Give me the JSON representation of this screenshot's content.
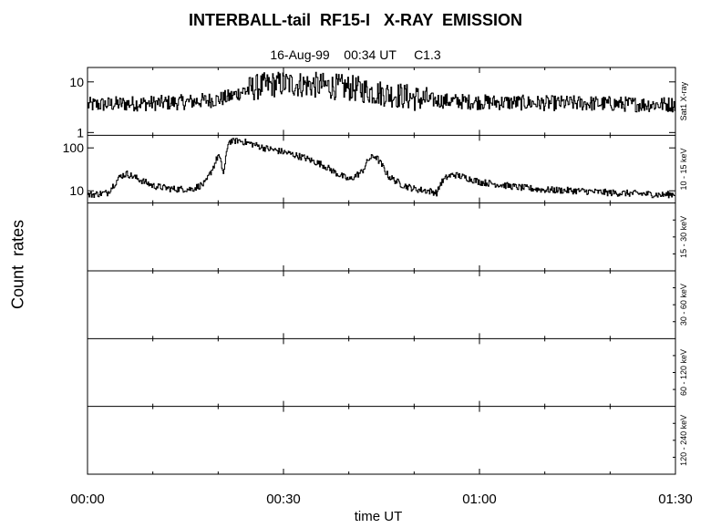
{
  "chart_data": {
    "type": "line",
    "title": "INTERBALL-tail  RF15-I   X-RAY  EMISSION",
    "subtitle": "16-Aug-99    00:34 UT     C1.3",
    "ylabel": "Count  rates",
    "xlabel": "time UT",
    "x_ticks": [
      "00:00",
      "00:30",
      "01:00",
      "01:30"
    ],
    "x_range_minutes": [
      0,
      90
    ],
    "panels": [
      {
        "label": "Sat1 X-ray",
        "scale": "log",
        "ylim": [
          1,
          17
        ],
        "ytick_labels": [
          "1",
          "10"
        ],
        "ytick_values": [
          1,
          10
        ],
        "series": {
          "minutes": [
            0,
            5,
            10,
            15,
            20,
            22,
            24,
            26,
            28,
            30,
            32,
            35,
            38,
            40,
            42,
            44,
            46,
            48,
            50,
            52,
            55,
            60,
            65,
            70,
            75,
            80,
            85,
            90
          ],
          "values": [
            3.5,
            3.7,
            3.8,
            4,
            4.5,
            5.2,
            6.8,
            8,
            8.8,
            9.2,
            9.0,
            8.6,
            8.0,
            7.6,
            7.0,
            6.2,
            5.8,
            5.3,
            4.8,
            4.4,
            4.2,
            4.0,
            3.9,
            3.8,
            3.8,
            3.7,
            3.6,
            3.6
          ]
        }
      },
      {
        "label": "10 - 15 keV",
        "scale": "log",
        "ylim": [
          6,
          170
        ],
        "ytick_labels": [
          "10",
          "100"
        ],
        "ytick_values": [
          10,
          100
        ],
        "series": {
          "minutes": [
            0,
            3,
            5,
            6,
            8,
            10,
            13,
            16,
            18,
            19.5,
            20,
            20.8,
            21.5,
            23,
            25,
            27,
            30,
            33,
            36,
            38,
            40,
            42,
            43,
            44,
            45,
            46,
            48,
            50,
            52,
            53.5,
            54,
            55,
            56,
            58,
            60,
            63,
            66,
            70,
            75,
            80,
            85,
            88,
            90
          ],
          "values": [
            8,
            9,
            22,
            25,
            18,
            13,
            11,
            11,
            15,
            45,
            70,
            25,
            140,
            150,
            125,
            100,
            80,
            60,
            40,
            26,
            18,
            28,
            55,
            65,
            40,
            22,
            14,
            11,
            10,
            9,
            15,
            21,
            24,
            20,
            16,
            14,
            12,
            10.5,
            10,
            9,
            8.5,
            8,
            8.5
          ]
        }
      },
      {
        "label": "15 - 30 keV",
        "scale": "log",
        "series": null
      },
      {
        "label": "30 - 60 keV",
        "scale": "log",
        "series": null
      },
      {
        "label": "60 - 120 keV",
        "scale": "log",
        "series": null
      },
      {
        "label": "120 - 240 keV",
        "scale": "log",
        "series": null
      }
    ],
    "grid": false,
    "line_color": "#000000"
  }
}
